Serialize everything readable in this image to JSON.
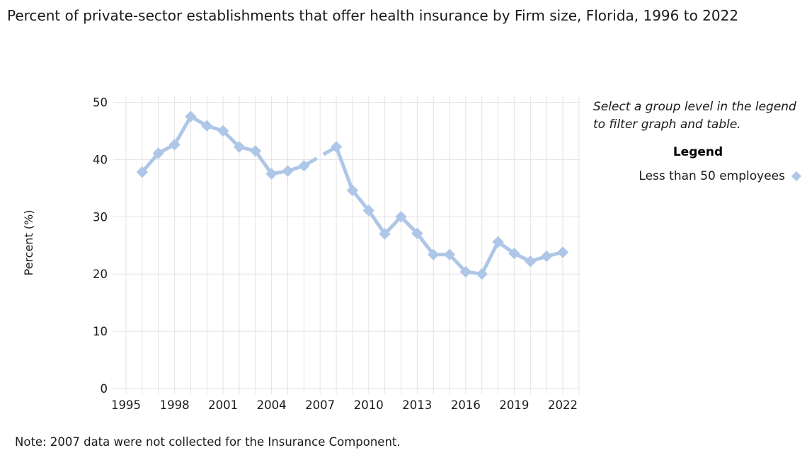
{
  "page": {
    "title": "Percent of private-sector establishments that offer health insurance by Firm size, Florida, 1996 to 2022",
    "note": "Note: 2007 data were not collected for the Insurance Component."
  },
  "side_panel": {
    "hint": "Select a group level in the legend to filter graph and table.",
    "legend_title": "Legend",
    "legend_items": [
      {
        "label": "Less than 50 employees",
        "marker": "diamond-icon",
        "color": "#aec7e8"
      }
    ]
  },
  "colors": {
    "series": "#aec7e8",
    "gridline": "#e3e3e3",
    "text": "#1a1a1a"
  },
  "chart_data": {
    "type": "line",
    "title": "Percent of private-sector establishments that offer health insurance by Firm size, Florida, 1996 to 2022",
    "xlabel": "",
    "ylabel": "Percent (%)",
    "ylim": [
      0,
      50
    ],
    "yticks": [
      0,
      10,
      20,
      30,
      40,
      50
    ],
    "x_gridline_range": [
      1995,
      2023
    ],
    "xtick_labels": [
      "1995",
      "1998",
      "2001",
      "2004",
      "2007",
      "2010",
      "2013",
      "2016",
      "2019",
      "2022"
    ],
    "grid": true,
    "legend_position": "right",
    "marker": "diamond",
    "series": [
      {
        "name": "Less than 50 employees",
        "color": "#aec7e8",
        "x": [
          1996,
          1997,
          1998,
          1999,
          2000,
          2001,
          2002,
          2003,
          2004,
          2005,
          2006,
          2007,
          2008,
          2009,
          2010,
          2011,
          2012,
          2013,
          2014,
          2015,
          2016,
          2017,
          2018,
          2019,
          2020,
          2021,
          2022
        ],
        "y": [
          37.8,
          41.1,
          42.6,
          47.5,
          45.9,
          45.0,
          42.2,
          41.5,
          37.5,
          38.0,
          38.9,
          null,
          42.2,
          34.6,
          31.1,
          27.0,
          30.0,
          27.1,
          23.4,
          23.4,
          20.4,
          20.0,
          25.6,
          23.6,
          22.2,
          23.1,
          23.8
        ]
      }
    ]
  }
}
